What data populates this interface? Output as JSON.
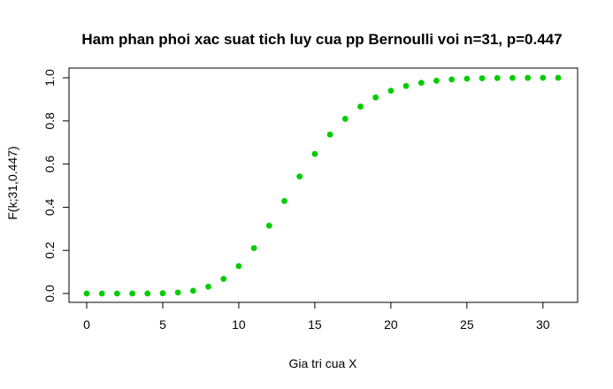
{
  "chart_data": {
    "type": "scatter",
    "title": "Ham phan phoi xac suat tich luy cua pp Bernoulli voi n=31, p=0.447",
    "xlabel": "Gia tri cua X",
    "ylabel": "F(k;31,0.447)",
    "xlim": [
      0,
      31
    ],
    "ylim": [
      0,
      1
    ],
    "x_ticks": [
      0,
      5,
      10,
      15,
      20,
      25,
      30
    ],
    "y_ticks": [
      0.0,
      0.2,
      0.4,
      0.6,
      0.8,
      1.0
    ],
    "x_tick_labels": [
      "0",
      "5",
      "10",
      "15",
      "20",
      "25",
      "30"
    ],
    "y_tick_labels": [
      "0.0",
      "0.2",
      "0.4",
      "0.6",
      "0.8",
      "1.0"
    ],
    "marker_color": "#00cd00",
    "grid": false,
    "x": [
      0,
      1,
      2,
      3,
      4,
      5,
      6,
      7,
      8,
      9,
      10,
      11,
      12,
      13,
      14,
      15,
      16,
      17,
      18,
      19,
      20,
      21,
      22,
      23,
      24,
      25,
      26,
      27,
      28,
      29,
      30,
      31
    ],
    "y": [
      0.0,
      0.0,
      0.0,
      0.0,
      0.0002,
      0.0013,
      0.0045,
      0.0129,
      0.0318,
      0.0679,
      0.1271,
      0.2107,
      0.3146,
      0.4287,
      0.5425,
      0.6471,
      0.7367,
      0.8097,
      0.8665,
      0.909,
      0.9401,
      0.9622,
      0.977,
      0.9865,
      0.9924,
      0.9959,
      0.9979,
      0.999,
      0.9995,
      0.9998,
      0.9999,
      1.0
    ]
  }
}
